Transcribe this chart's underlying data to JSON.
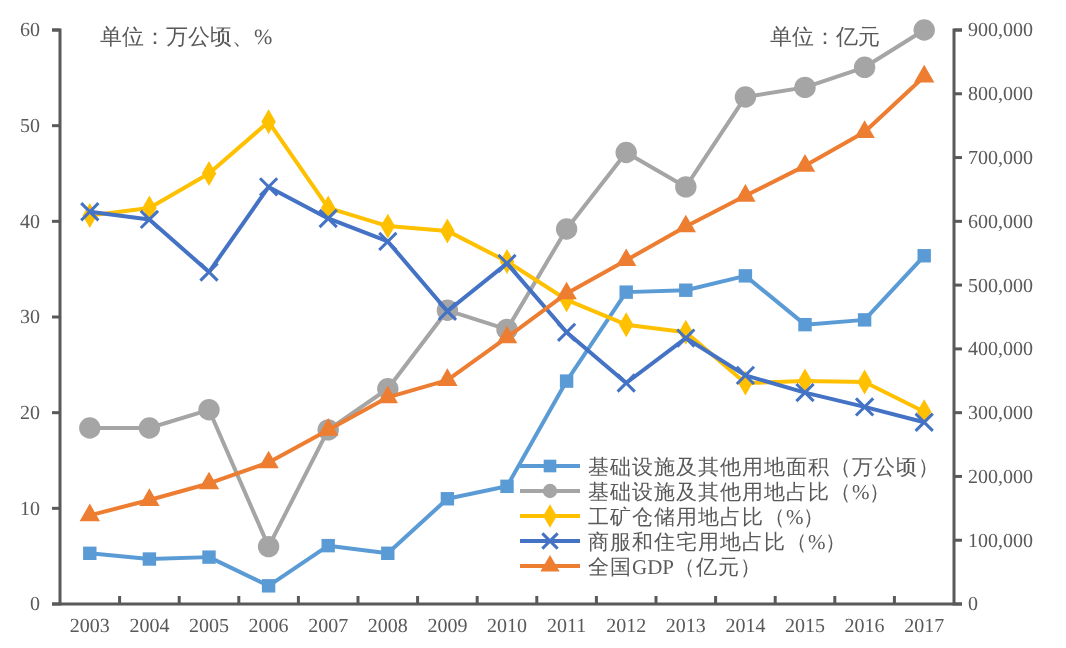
{
  "chart_data": {
    "type": "line",
    "ylabel": "单位：万公顷、%",
    "y2label": "单位：亿元",
    "categories": [
      "2003",
      "2004",
      "2005",
      "2006",
      "2007",
      "2008",
      "2009",
      "2010",
      "2011",
      "2012",
      "2013",
      "2014",
      "2015",
      "2016",
      "2017"
    ],
    "ylim": [
      0,
      60
    ],
    "yticks": [
      0,
      10,
      20,
      30,
      40,
      50,
      60
    ],
    "y2lim": [
      0,
      900000
    ],
    "y2ticks": [
      0,
      {
        "value": 100000,
        "label": "100,000"
      },
      {
        "value": 200000,
        "label": "200,000"
      },
      {
        "value": 300000,
        "label": "300,000"
      },
      {
        "value": 400000,
        "label": "400,000"
      },
      {
        "value": 500000,
        "label": "500,000"
      },
      {
        "value": 600000,
        "label": "600,000"
      },
      {
        "value": 700000,
        "label": "700,000"
      },
      {
        "value": 800000,
        "label": "800,000"
      },
      {
        "value": 900000,
        "label": "900,000"
      }
    ],
    "grid": false,
    "legend": "bottom right",
    "line_style": "solid",
    "series": [
      {
        "name": "基础设施及其他用地面积（万公顷）",
        "color": "#5b9bd5",
        "marker": "square",
        "values": [
          5.3,
          4.7,
          4.9,
          1.9,
          6.1,
          5.3,
          11,
          12.3,
          23.3,
          32.6,
          32.8,
          34.3,
          29.2,
          29.7,
          36.4
        ]
      },
      {
        "name": "基础设施及其他用地占比（%）",
        "color": "#a5a5a5",
        "marker": "circle",
        "values": [
          18.4,
          18.4,
          20.3,
          6,
          18.2,
          22.5,
          30.7,
          28.7,
          39.2,
          47.2,
          43.6,
          53,
          54,
          56.1,
          60
        ]
      },
      {
        "name": "工矿仓储用地占比（%）",
        "color": "#ffc000",
        "marker": "diamond",
        "values": [
          40.6,
          41.4,
          45,
          50.4,
          41.4,
          39.5,
          39,
          35.8,
          31.8,
          29.2,
          28.4,
          23.1,
          23.3,
          23.2,
          20.1
        ]
      },
      {
        "name": "商服和住宅用地占比（%）",
        "color": "#4472c4",
        "marker": "cross",
        "values": [
          41,
          40.2,
          34.7,
          43.6,
          40.3,
          37.9,
          30.6,
          35.6,
          28.4,
          23.1,
          27.8,
          23.9,
          22.1,
          20.6,
          19
        ]
      },
      {
        "name": "全国GDP（亿元）",
        "color": "#ed7d31",
        "marker": "triangle",
        "axis": "y2",
        "values": [
          139000,
          163000,
          189000,
          222000,
          273000,
          324000,
          351000,
          418000,
          487000,
          539000,
          592000,
          640000,
          687000,
          740000,
          827000
        ]
      }
    ]
  }
}
